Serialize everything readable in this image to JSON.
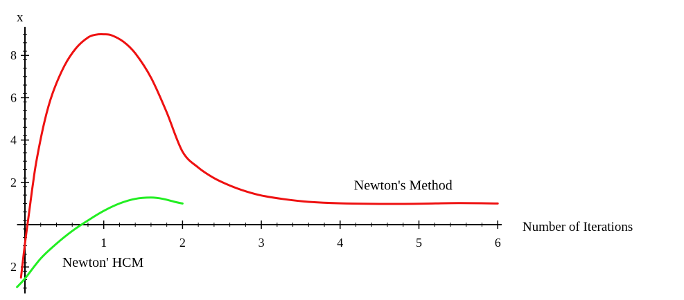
{
  "chart_data": {
    "type": "line",
    "title": "",
    "xlabel": "Number of Iterations",
    "ylabel": "x",
    "xlim": [
      -0.1,
      6.05
    ],
    "ylim": [
      -3.25,
      9.35
    ],
    "grid": false,
    "legend": "none",
    "x_ticks": [
      {
        "value": 1,
        "label": "1"
      },
      {
        "value": 2,
        "label": "2"
      },
      {
        "value": 3,
        "label": "3"
      },
      {
        "value": 4,
        "label": "4"
      },
      {
        "value": 5,
        "label": "5"
      },
      {
        "value": 6,
        "label": "6"
      }
    ],
    "y_ticks": [
      {
        "value": 2,
        "label": "2"
      },
      {
        "value": 4,
        "label": "4"
      },
      {
        "value": 6,
        "label": "6"
      },
      {
        "value": 8,
        "label": "8"
      },
      {
        "value": -2,
        "label": "2"
      }
    ],
    "series": [
      {
        "name": "Newton's Method",
        "color": "#ee1111",
        "points": [
          [
            -0.05,
            -2.5
          ],
          [
            0.0,
            -0.9
          ],
          [
            0.05,
            0.5
          ],
          [
            0.1,
            1.9
          ],
          [
            0.15,
            3.1
          ],
          [
            0.25,
            4.9
          ],
          [
            0.35,
            6.2
          ],
          [
            0.5,
            7.5
          ],
          [
            0.65,
            8.35
          ],
          [
            0.8,
            8.85
          ],
          [
            0.9,
            8.98
          ],
          [
            1.0,
            9.0
          ],
          [
            1.1,
            8.95
          ],
          [
            1.25,
            8.65
          ],
          [
            1.4,
            8.1
          ],
          [
            1.6,
            6.95
          ],
          [
            1.8,
            5.3
          ],
          [
            2.0,
            3.45
          ],
          [
            2.2,
            2.7
          ],
          [
            2.4,
            2.2
          ],
          [
            2.6,
            1.85
          ],
          [
            2.8,
            1.58
          ],
          [
            3.0,
            1.38
          ],
          [
            3.3,
            1.2
          ],
          [
            3.6,
            1.08
          ],
          [
            4.0,
            1.01
          ],
          [
            4.5,
            0.98
          ],
          [
            5.0,
            0.99
          ],
          [
            5.5,
            1.02
          ],
          [
            6.0,
            1.0
          ]
        ]
      },
      {
        "name": "",
        "color": "#22ee22",
        "points": [
          [
            -0.1,
            -2.95
          ],
          [
            0.0,
            -2.55
          ],
          [
            0.2,
            -1.6
          ],
          [
            0.4,
            -0.9
          ],
          [
            0.6,
            -0.3
          ],
          [
            0.8,
            0.2
          ],
          [
            1.0,
            0.65
          ],
          [
            1.2,
            1.0
          ],
          [
            1.4,
            1.22
          ],
          [
            1.6,
            1.28
          ],
          [
            1.75,
            1.22
          ],
          [
            1.9,
            1.08
          ],
          [
            2.0,
            1.0
          ]
        ]
      }
    ],
    "annotations": [
      {
        "text": "Newton's Method",
        "x": 4.8,
        "y": 1.65
      },
      {
        "text": "Newton' HCM",
        "x": 0.99,
        "y": -2.0
      }
    ]
  }
}
